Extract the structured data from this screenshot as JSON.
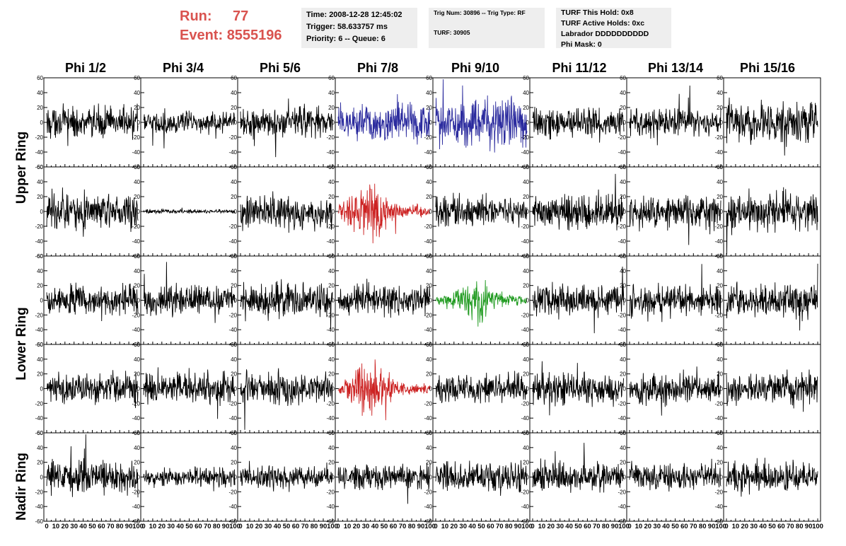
{
  "header": {
    "run_label": "Run:",
    "run_value": "77",
    "event_label": "Event:",
    "event_value": "8555196",
    "info1": [
      "Time: 2008-12-28 12:45:02",
      "Trigger: 58.633757 ms",
      "Priority: 6 -- Queue: 6"
    ],
    "info2": [
      "Trig Num: 30896 -- Trig Type: RF",
      "TURF: 30905"
    ],
    "info3": [
      "TURF This Hold: 0x8",
      "TURF Active Holds: 0xc",
      "Labrador DDDDDDDDDD",
      "Phi Mask: 0"
    ]
  },
  "columns": [
    "Phi 1/2",
    "Phi 3/4",
    "Phi 5/6",
    "Phi 7/8",
    "Phi 9/10",
    "Phi 11/12",
    "Phi 13/14",
    "Phi 15/16"
  ],
  "rings": [
    {
      "label": "Upper Ring",
      "rows": [
        0,
        1
      ]
    },
    {
      "label": "Lower Ring",
      "rows": [
        2,
        3
      ]
    },
    {
      "label": "Nadir Ring",
      "rows": [
        4,
        4
      ]
    }
  ],
  "colors": {
    "default": "#000000",
    "blue": "#2b2b9e",
    "red": "#cc2222",
    "green": "#1f9a1f",
    "header_red": "#d9534f",
    "box_bg": "#eeeeee"
  },
  "chart_data": {
    "type": "line",
    "layout": "grid 5 rows x 8 columns of waveform panels",
    "x_ticks": [
      0,
      10,
      20,
      30,
      40,
      50,
      60,
      70,
      80,
      90,
      100
    ],
    "xlim": [
      0,
      100
    ],
    "y_ticks": [
      -60,
      -40,
      -20,
      0,
      20,
      40,
      60
    ],
    "ylim": [
      -60,
      60
    ],
    "trace_samples": 260,
    "panels": [
      {
        "row": 0,
        "col": 0,
        "color": "default",
        "amp": 14,
        "env": "flat"
      },
      {
        "row": 0,
        "col": 1,
        "color": "default",
        "amp": 10,
        "env": "flat"
      },
      {
        "row": 0,
        "col": 2,
        "color": "default",
        "amp": 14,
        "env": "flat"
      },
      {
        "row": 0,
        "col": 3,
        "color": "blue",
        "amp": 18,
        "env": "flat"
      },
      {
        "row": 0,
        "col": 4,
        "color": "blue",
        "amp": 22,
        "env": "flat"
      },
      {
        "row": 0,
        "col": 5,
        "color": "default",
        "amp": 13,
        "env": "flat"
      },
      {
        "row": 0,
        "col": 6,
        "color": "default",
        "amp": 13,
        "env": "flat"
      },
      {
        "row": 0,
        "col": 7,
        "color": "default",
        "amp": 17,
        "env": "flat"
      },
      {
        "row": 1,
        "col": 0,
        "color": "default",
        "amp": 16,
        "env": "flat"
      },
      {
        "row": 1,
        "col": 1,
        "color": "default",
        "amp": 2,
        "env": "flat"
      },
      {
        "row": 1,
        "col": 2,
        "color": "default",
        "amp": 15,
        "env": "flat"
      },
      {
        "row": 1,
        "col": 3,
        "color": "red",
        "amp": 20,
        "env": "early"
      },
      {
        "row": 1,
        "col": 4,
        "color": "default",
        "amp": 13,
        "env": "flat"
      },
      {
        "row": 1,
        "col": 5,
        "color": "default",
        "amp": 15,
        "env": "flat"
      },
      {
        "row": 1,
        "col": 6,
        "color": "default",
        "amp": 15,
        "env": "flat"
      },
      {
        "row": 1,
        "col": 7,
        "color": "default",
        "amp": 17,
        "env": "flat"
      },
      {
        "row": 2,
        "col": 0,
        "color": "default",
        "amp": 14,
        "env": "flat"
      },
      {
        "row": 2,
        "col": 1,
        "color": "default",
        "amp": 14,
        "env": "flat"
      },
      {
        "row": 2,
        "col": 2,
        "color": "default",
        "amp": 15,
        "env": "flat"
      },
      {
        "row": 2,
        "col": 3,
        "color": "default",
        "amp": 14,
        "env": "flat"
      },
      {
        "row": 2,
        "col": 4,
        "color": "green",
        "amp": 15,
        "env": "mid"
      },
      {
        "row": 2,
        "col": 5,
        "color": "default",
        "amp": 14,
        "env": "flat"
      },
      {
        "row": 2,
        "col": 6,
        "color": "default",
        "amp": 14,
        "env": "flat"
      },
      {
        "row": 2,
        "col": 7,
        "color": "default",
        "amp": 15,
        "env": "flat"
      },
      {
        "row": 3,
        "col": 0,
        "color": "default",
        "amp": 14,
        "env": "flat"
      },
      {
        "row": 3,
        "col": 1,
        "color": "default",
        "amp": 14,
        "env": "flat"
      },
      {
        "row": 3,
        "col": 2,
        "color": "default",
        "amp": 14,
        "env": "flat"
      },
      {
        "row": 3,
        "col": 3,
        "color": "red",
        "amp": 18,
        "env": "early"
      },
      {
        "row": 3,
        "col": 4,
        "color": "default",
        "amp": 13,
        "env": "flat"
      },
      {
        "row": 3,
        "col": 5,
        "color": "default",
        "amp": 14,
        "env": "flat"
      },
      {
        "row": 3,
        "col": 6,
        "color": "default",
        "amp": 14,
        "env": "flat"
      },
      {
        "row": 3,
        "col": 7,
        "color": "default",
        "amp": 15,
        "env": "flat"
      },
      {
        "row": 4,
        "col": 0,
        "color": "default",
        "amp": 16,
        "env": "flat"
      },
      {
        "row": 4,
        "col": 1,
        "color": "default",
        "amp": 9,
        "env": "flat"
      },
      {
        "row": 4,
        "col": 2,
        "color": "default",
        "amp": 11,
        "env": "flat"
      },
      {
        "row": 4,
        "col": 3,
        "color": "default",
        "amp": 11,
        "env": "flat"
      },
      {
        "row": 4,
        "col": 4,
        "color": "default",
        "amp": 13,
        "env": "flat"
      },
      {
        "row": 4,
        "col": 5,
        "color": "default",
        "amp": 13,
        "env": "flat"
      },
      {
        "row": 4,
        "col": 6,
        "color": "default",
        "amp": 13,
        "env": "flat"
      },
      {
        "row": 4,
        "col": 7,
        "color": "default",
        "amp": 14,
        "env": "flat"
      }
    ]
  }
}
